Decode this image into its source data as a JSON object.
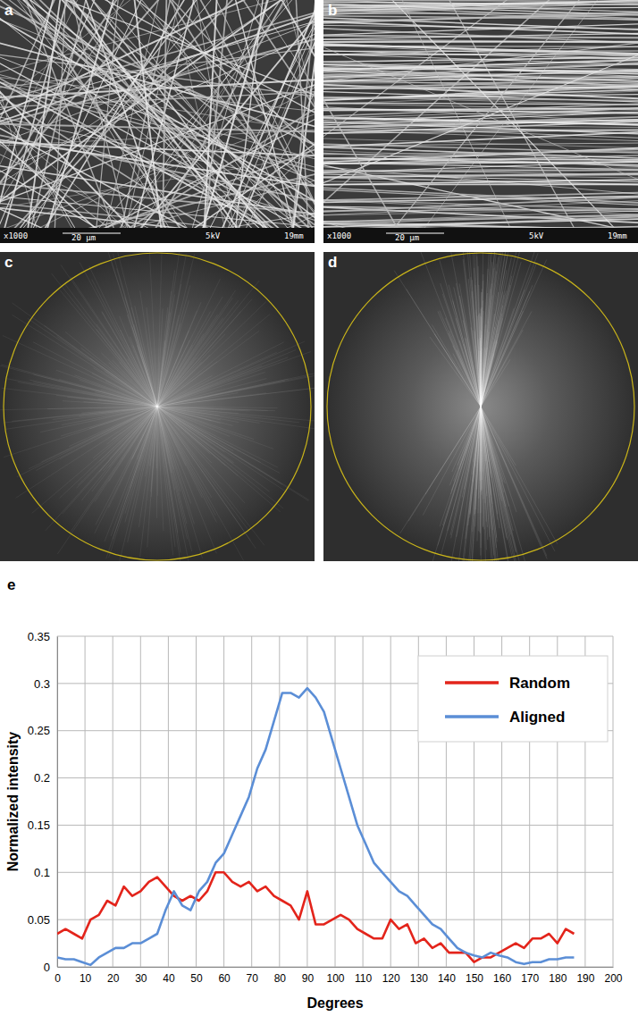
{
  "panels": [
    {
      "label": "a",
      "scale_bar": {
        "magnification": "x1000",
        "length": "20 μm",
        "voltage": "5kV",
        "distance": "19mm"
      }
    },
    {
      "label": "b",
      "scale_bar": {
        "magnification": "x1000",
        "length": "20 μm",
        "voltage": "5kV",
        "distance": "19mm"
      }
    },
    {
      "label": "c"
    },
    {
      "label": "d"
    },
    {
      "label": "e"
    }
  ],
  "chart_data": {
    "type": "line",
    "x_label": "Degrees",
    "y_label": "Normalized intensity",
    "x": [
      0,
      3,
      6,
      9,
      12,
      15,
      18,
      21,
      24,
      27,
      30,
      33,
      36,
      39,
      42,
      45,
      48,
      51,
      54,
      57,
      60,
      63,
      66,
      69,
      72,
      75,
      78,
      81,
      84,
      87,
      90,
      93,
      96,
      99,
      102,
      105,
      108,
      111,
      114,
      117,
      120,
      123,
      126,
      129,
      132,
      135,
      138,
      141,
      144,
      147,
      150,
      153,
      156,
      159,
      162,
      165,
      168,
      171,
      174,
      177,
      180,
      183,
      186
    ],
    "series": [
      {
        "name": "Random",
        "color": "#e3241b",
        "values": [
          0.035,
          0.04,
          0.035,
          0.03,
          0.05,
          0.055,
          0.07,
          0.065,
          0.085,
          0.075,
          0.08,
          0.09,
          0.095,
          0.085,
          0.075,
          0.07,
          0.075,
          0.07,
          0.08,
          0.1,
          0.1,
          0.09,
          0.085,
          0.09,
          0.08,
          0.085,
          0.075,
          0.07,
          0.065,
          0.05,
          0.08,
          0.045,
          0.045,
          0.05,
          0.055,
          0.05,
          0.04,
          0.035,
          0.03,
          0.03,
          0.05,
          0.04,
          0.045,
          0.025,
          0.03,
          0.02,
          0.025,
          0.015,
          0.015,
          0.015,
          0.005,
          0.01,
          0.01,
          0.015,
          0.02,
          0.025,
          0.02,
          0.03,
          0.03,
          0.035,
          0.025,
          0.04,
          0.035
        ]
      },
      {
        "name": "Aligned",
        "color": "#5b8ed6",
        "values": [
          0.01,
          0.008,
          0.008,
          0.005,
          0.002,
          0.01,
          0.015,
          0.02,
          0.02,
          0.025,
          0.025,
          0.03,
          0.035,
          0.06,
          0.08,
          0.065,
          0.06,
          0.08,
          0.09,
          0.11,
          0.12,
          0.14,
          0.16,
          0.18,
          0.21,
          0.23,
          0.26,
          0.29,
          0.29,
          0.285,
          0.295,
          0.285,
          0.27,
          0.24,
          0.21,
          0.18,
          0.15,
          0.13,
          0.11,
          0.1,
          0.09,
          0.08,
          0.075,
          0.065,
          0.055,
          0.045,
          0.04,
          0.03,
          0.02,
          0.015,
          0.012,
          0.01,
          0.015,
          0.012,
          0.01,
          0.005,
          0.003,
          0.005,
          0.005,
          0.008,
          0.008,
          0.01,
          0.01
        ]
      }
    ],
    "xlim": [
      0,
      200
    ],
    "xticks": [
      0,
      10,
      20,
      30,
      40,
      50,
      60,
      70,
      80,
      90,
      100,
      110,
      120,
      130,
      140,
      150,
      160,
      170,
      180,
      190,
      200
    ],
    "ylim": [
      0,
      0.35
    ],
    "yticks": [
      0,
      0.05,
      0.1,
      0.15,
      0.2,
      0.25,
      0.3,
      0.35
    ],
    "grid": true,
    "legend": "upper right"
  }
}
